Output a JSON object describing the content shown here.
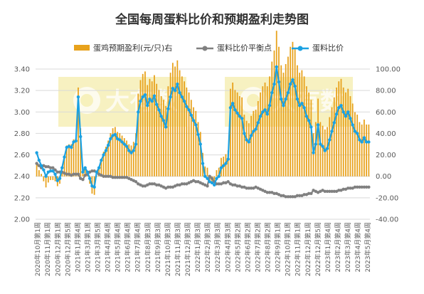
{
  "chart_data": {
    "type": "bar+line",
    "title": "全国每周蛋料比价和预期盈利走势图",
    "legend": [
      {
        "key": "profit",
        "label": "蛋鸡预期盈利(元/只)右",
        "color": "#e8a21c",
        "kind": "bar"
      },
      {
        "key": "breakeven",
        "label": "蛋料比价平衡点",
        "color": "#808080",
        "kind": "line-marker"
      },
      {
        "key": "ratio",
        "label": "蛋料比价",
        "color": "#1ba1e2",
        "kind": "line-marker"
      }
    ],
    "y_left": {
      "min": 2.0,
      "max": 3.4,
      "step": 0.2,
      "ticks": [
        "2.00",
        "2.20",
        "2.40",
        "2.60",
        "2.80",
        "3.00",
        "3.20",
        "3.40"
      ]
    },
    "y_right": {
      "min": -40,
      "max": 100,
      "step": 20,
      "ticks": [
        "-40.00",
        "-20.00",
        "0.00",
        "20.00",
        "40.00",
        "60.00",
        "80.00",
        "100.00"
      ]
    },
    "x_ticks": [
      "2020年10月第1周",
      "2020年11月第1周",
      "2020年12月第1周",
      "2020年12月第5周",
      "2021年1月第4周",
      "2021年3月第1周",
      "2021年3月第5周",
      "2021年4月第4周",
      "2021年5月第4周",
      "2021年6月第4周",
      "2021年7月第4周",
      "2021年8月第3周",
      "2021年9月第3周",
      "2021年10月第3周",
      "2021年11月第3周",
      "2021年12月第3周",
      "2022年1月第3周",
      "2022年2月第3周",
      "2022年3月第3周",
      "2022年4月第3周",
      "2022年5月第2周",
      "2022年6月第2周",
      "2022年7月第2周",
      "2022年8月第2周",
      "2022年9月第1周",
      "2022年10月第1周",
      "2022年11月第1周",
      "2022年12月第1周",
      "2022年12月第5周",
      "2023年1月第4周",
      "2023年2月第4周",
      "2023年3月第4周",
      "2023年4月第4周",
      "2023年5月第4周"
    ],
    "watermark": "大有数",
    "ratio": [
      2.62,
      2.55,
      2.5,
      2.46,
      2.4,
      2.44,
      2.45,
      2.45,
      2.42,
      2.36,
      2.38,
      2.48,
      2.58,
      2.67,
      2.68,
      2.67,
      2.72,
      2.73,
      3.14,
      2.77,
      2.44,
      2.48,
      2.44,
      2.38,
      2.31,
      2.3,
      2.44,
      2.48,
      2.55,
      2.6,
      2.64,
      2.69,
      2.75,
      2.78,
      2.79,
      2.75,
      2.74,
      2.72,
      2.7,
      2.68,
      2.64,
      2.62,
      2.64,
      2.7,
      3.0,
      3.1,
      3.14,
      3.16,
      3.06,
      3.12,
      3.1,
      3.15,
      3.07,
      3.02,
      2.96,
      2.92,
      2.86,
      3.03,
      3.14,
      3.22,
      3.2,
      3.26,
      3.18,
      3.14,
      3.1,
      3.05,
      3.02,
      2.97,
      2.92,
      2.88,
      2.79,
      2.7,
      2.52,
      2.4,
      2.38,
      2.35,
      2.34,
      2.32,
      2.38,
      2.4,
      2.48,
      2.5,
      2.52,
      2.56,
      3.04,
      3.08,
      3.02,
      2.99,
      2.96,
      2.94,
      2.8,
      2.74,
      2.72,
      2.78,
      2.82,
      2.84,
      2.9,
      2.96,
      3.0,
      3.02,
      2.98,
      3.06,
      3.18,
      3.26,
      3.42,
      3.28,
      3.12,
      3.06,
      3.12,
      3.18,
      3.26,
      3.3,
      3.24,
      3.12,
      3.06,
      3.08,
      3.04,
      2.96,
      2.92,
      2.86,
      2.62,
      2.7,
      2.88,
      2.7,
      2.68,
      2.64,
      2.66,
      2.74,
      2.82,
      2.9,
      2.98,
      3.04,
      3.06,
      3.0,
      2.96,
      3.0,
      2.94,
      2.88,
      2.82,
      2.8,
      2.74,
      2.72,
      2.76,
      2.72,
      2.72
    ],
    "breakeven": [
      2.52,
      2.5,
      2.48,
      2.5,
      2.49,
      2.49,
      2.48,
      2.48,
      2.46,
      2.44,
      2.44,
      2.44,
      2.43,
      2.42,
      2.42,
      2.41,
      2.42,
      2.42,
      2.42,
      2.38,
      2.37,
      2.41,
      2.42,
      2.44,
      2.45,
      2.45,
      2.44,
      2.42,
      2.41,
      2.4,
      2.4,
      2.4,
      2.4,
      2.39,
      2.39,
      2.39,
      2.39,
      2.39,
      2.39,
      2.39,
      2.38,
      2.37,
      2.36,
      2.35,
      2.33,
      2.32,
      2.31,
      2.31,
      2.32,
      2.33,
      2.33,
      2.33,
      2.32,
      2.32,
      2.31,
      2.3,
      2.29,
      2.3,
      2.3,
      2.3,
      2.31,
      2.32,
      2.32,
      2.33,
      2.33,
      2.33,
      2.34,
      2.35,
      2.36,
      2.35,
      2.35,
      2.34,
      2.33,
      2.32,
      2.31,
      2.4,
      2.38,
      2.35,
      2.33,
      2.33,
      2.33,
      2.34,
      2.34,
      2.35,
      2.33,
      2.32,
      2.32,
      2.31,
      2.31,
      2.3,
      2.3,
      2.29,
      2.29,
      2.29,
      2.29,
      2.3,
      2.29,
      2.28,
      2.27,
      2.26,
      2.25,
      2.25,
      2.25,
      2.24,
      2.24,
      2.23,
      2.22,
      2.22,
      2.21,
      2.21,
      2.21,
      2.21,
      2.21,
      2.22,
      2.22,
      2.22,
      2.23,
      2.23,
      2.24,
      2.24,
      2.27,
      2.26,
      2.25,
      2.26,
      2.27,
      2.26,
      2.26,
      2.26,
      2.26,
      2.26,
      2.26,
      2.27,
      2.27,
      2.28,
      2.28,
      2.29,
      2.29,
      2.29,
      2.3,
      2.3,
      2.3,
      2.3,
      2.3,
      2.3,
      2.3
    ]
  }
}
